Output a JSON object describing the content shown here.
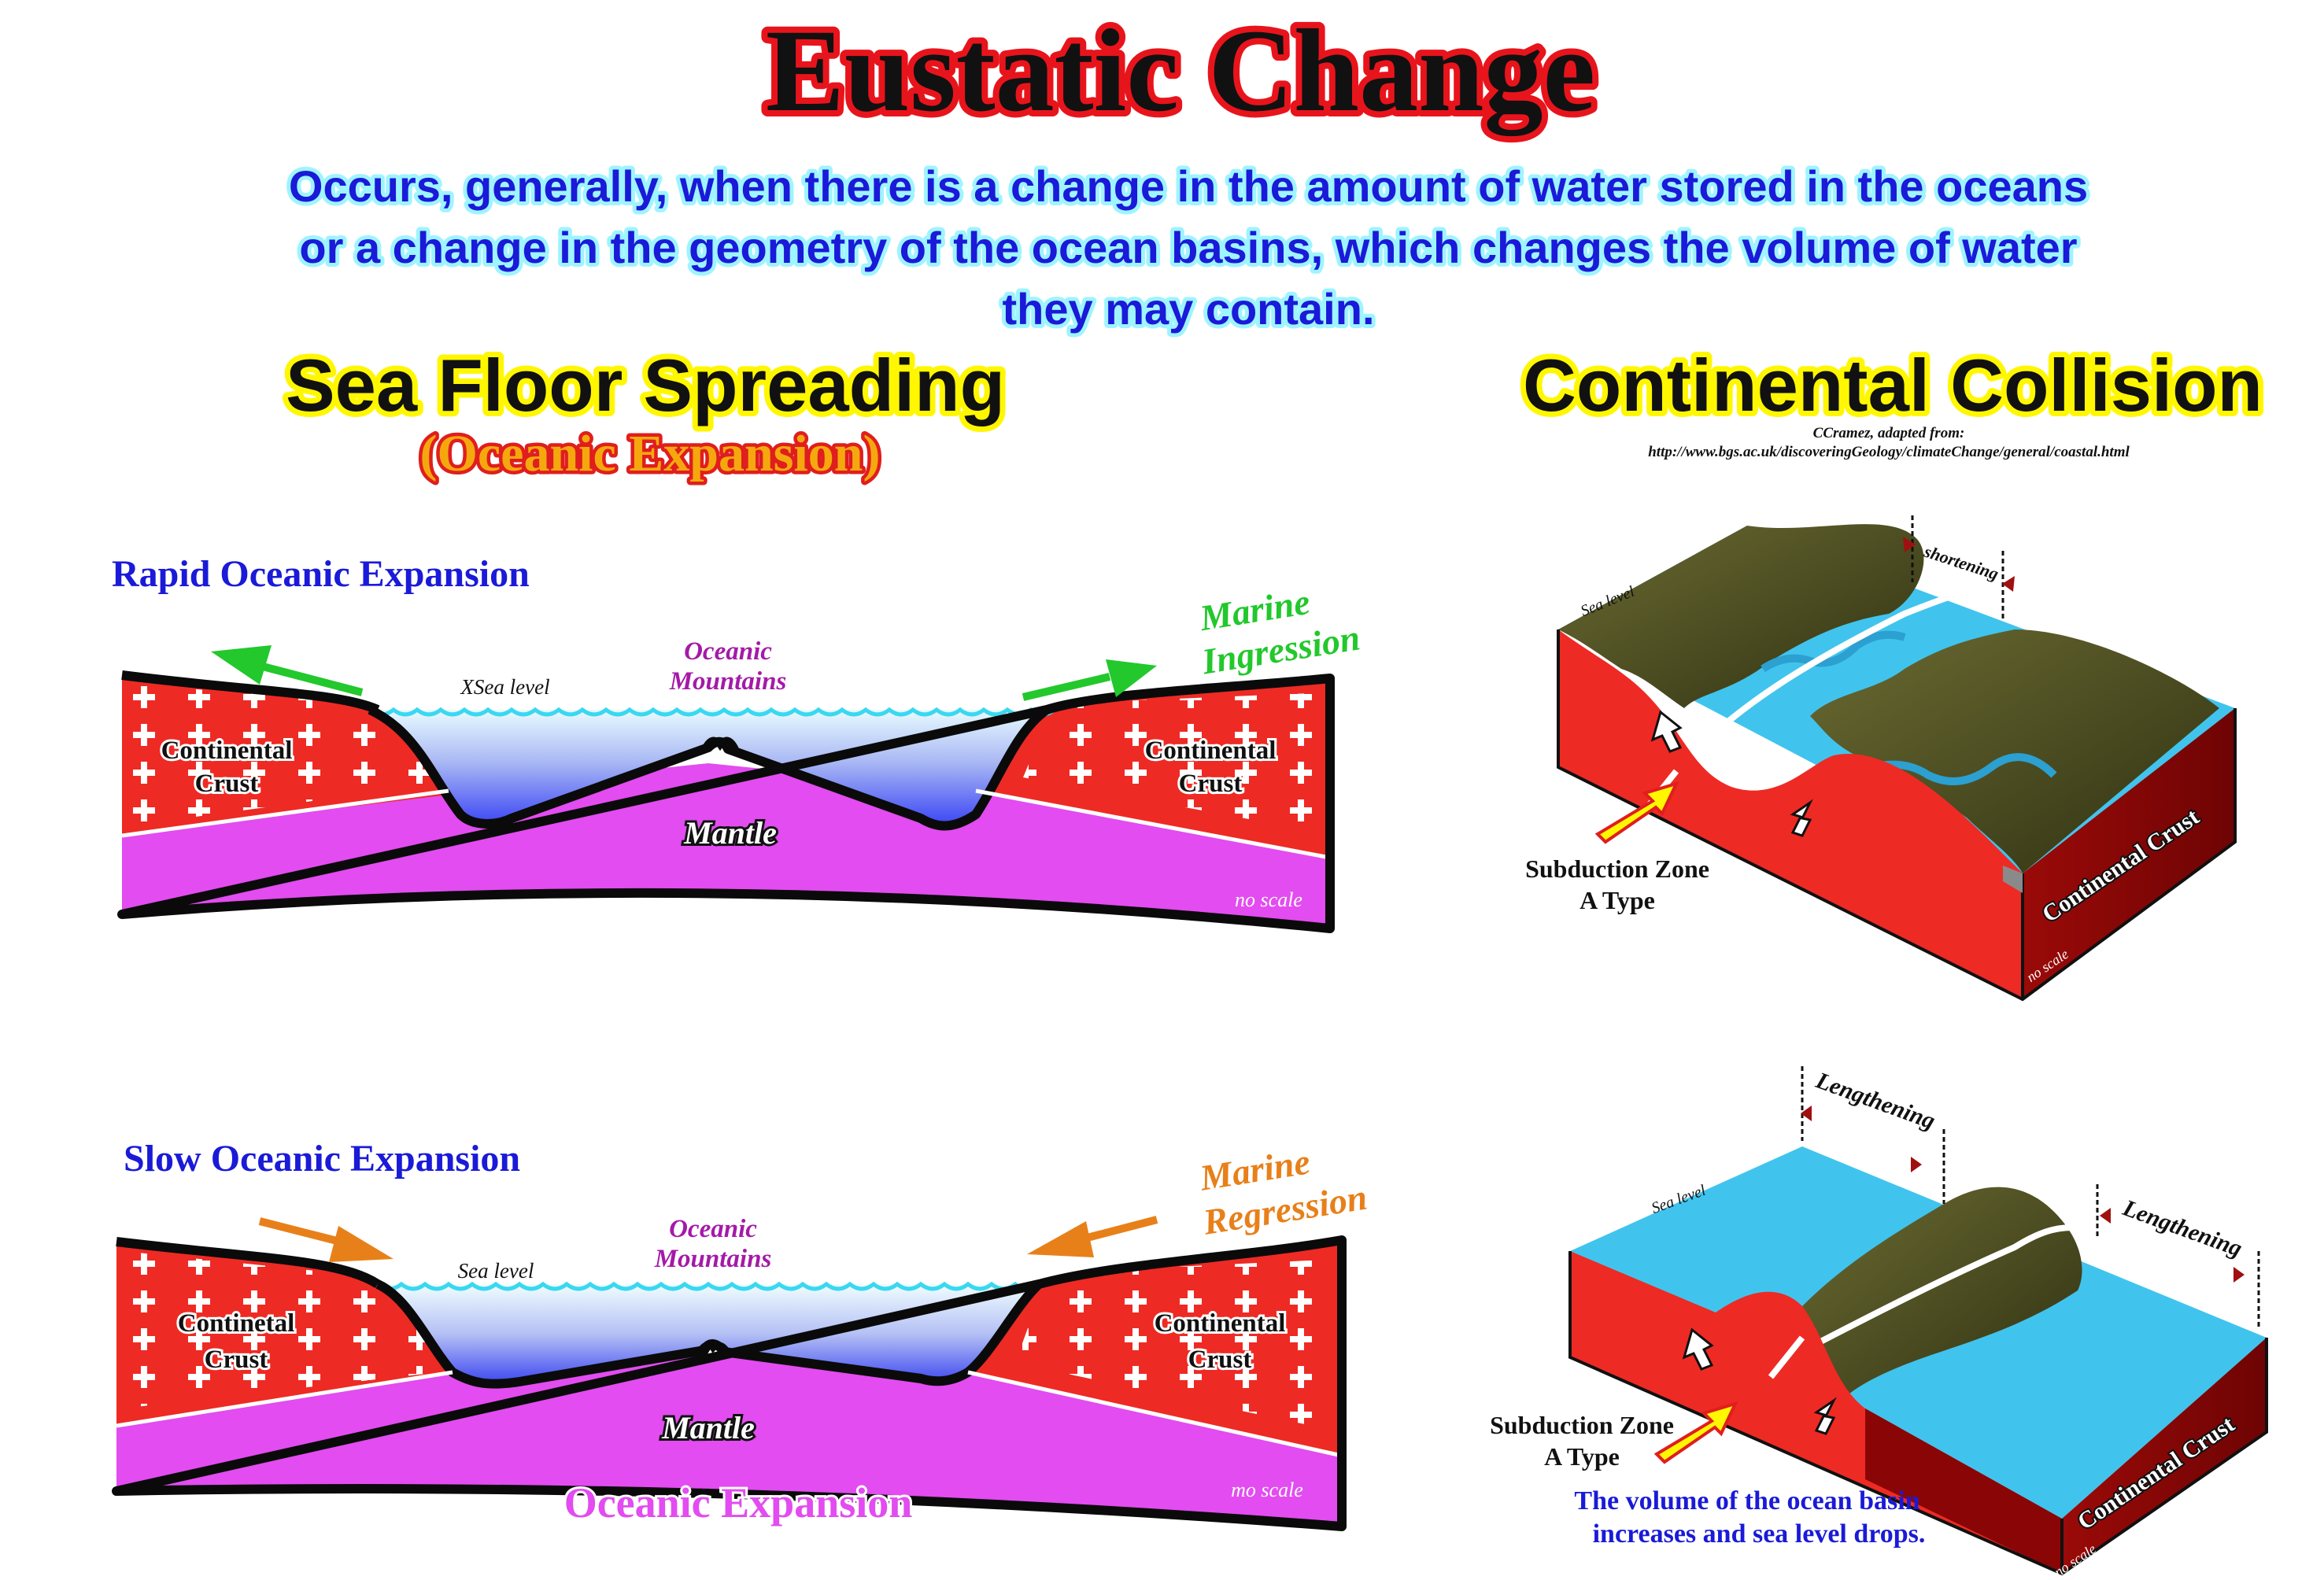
{
  "page": {
    "title": "Eustatic Change",
    "intro_line1": "Occurs, generally, when there is a change in the amount of water stored in the oceans",
    "intro_line2": "or a change in the geometry of the ocean basins, which changes the volume of water",
    "intro_line3": "they may contain."
  },
  "left": {
    "heading": "Sea Floor Spreading",
    "subheading": "(Oceanic Expansion)",
    "footer": "Oceanic Expansion",
    "rapid": {
      "label": "Rapid Oceanic Expansion",
      "sea_level": "XSea level",
      "mountains_1": "Oceanic",
      "mountains_2": "Mountains",
      "left_crust_1": "Continental",
      "left_crust_2": "Crust",
      "right_crust_1": "Continental",
      "right_crust_2": "Crust",
      "mantle": "Mantle",
      "marine_1": "Marine",
      "marine_2": "Ingression",
      "scale": "no scale"
    },
    "slow": {
      "label": "Slow Oceanic Expansion",
      "sea_level": "Sea level",
      "mountains_1": "Oceanic",
      "mountains_2": "Mountains",
      "left_crust_1": "Continetal",
      "left_crust_2": "Crust",
      "right_crust_1": "Continental",
      "right_crust_2": "Crust",
      "mantle": "Mantle",
      "marine_1": "Marine",
      "marine_2": "Regression",
      "scale": "mo scale"
    }
  },
  "right": {
    "heading": "Continental Collision",
    "credit_1": "CCramez, adapted from:",
    "credit_2": "http://www.bgs.ac.uk/discoveringGeology/climateChange/general/coastal.html",
    "top": {
      "sea_level": "Sea level",
      "shortening": "shortening",
      "subduction_1": "Subduction Zone",
      "subduction_2": "A Type",
      "crust": "Continental Crust",
      "scale": "no scale"
    },
    "bottom": {
      "sea_level": "Sea level",
      "lengthening_left": "Lengthening",
      "lengthening_right": "Lengthening",
      "subduction_1": "Subduction Zone",
      "subduction_2": "A Type",
      "crust": "Continental Crust",
      "scale": "no scale",
      "note_1": "The volume of the ocean basin",
      "note_2": "increases and sea level drops."
    }
  },
  "colors": {
    "title_red": "#e8141c",
    "text_blue": "#1a1ad8",
    "crust_red": "#ee2a24",
    "mantle_magenta": "#e24cf0",
    "ocean_cyan": "#40c4ee",
    "land_olive": "#4a4d22",
    "green_arrow": "#22c82c",
    "orange_arrow": "#e8801a",
    "heading_yellow": "#fff700",
    "purple_text": "#a41aa8"
  }
}
